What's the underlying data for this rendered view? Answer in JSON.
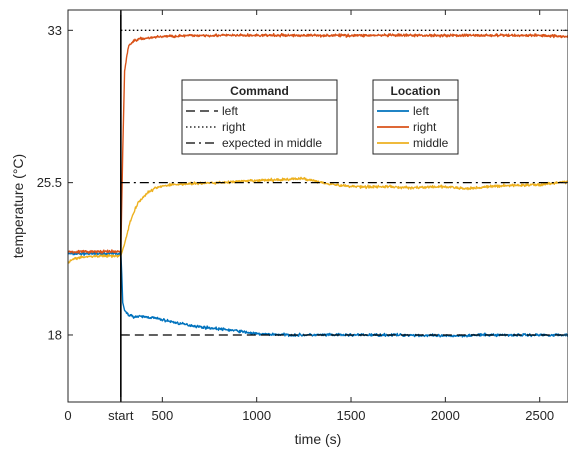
{
  "chart_data": {
    "type": "line",
    "title": "",
    "xlabel": "time (s)",
    "ylabel": "temperature (°C)",
    "xlim": [
      0,
      2650
    ],
    "ylim": [
      14.7,
      34
    ],
    "x_ticks": [
      {
        "value": 0,
        "label": "0"
      },
      {
        "value": 280,
        "label": "start"
      },
      {
        "value": 500,
        "label": "500"
      },
      {
        "value": 1000,
        "label": "1000"
      },
      {
        "value": 1500,
        "label": "1500"
      },
      {
        "value": 2000,
        "label": "2000"
      },
      {
        "value": 2500,
        "label": "2500"
      }
    ],
    "y_ticks": [
      {
        "value": 18,
        "label": "18"
      },
      {
        "value": 25.5,
        "label": "25.5"
      },
      {
        "value": 33,
        "label": "33"
      }
    ],
    "start_marker_x": 280,
    "grid": false,
    "legends": [
      {
        "title": "Command",
        "placement": "top-center",
        "entries": [
          {
            "label": "left",
            "style": "dashed",
            "color": "#000000"
          },
          {
            "label": "right",
            "style": "dotted",
            "color": "#000000"
          },
          {
            "label": "expected in middle",
            "style": "dashdot",
            "color": "#000000"
          }
        ]
      },
      {
        "title": "Location",
        "placement": "top-right",
        "entries": [
          {
            "label": "left",
            "style": "solid",
            "color": "#0072BD"
          },
          {
            "label": "right",
            "style": "solid",
            "color": "#D95319"
          },
          {
            "label": "middle",
            "style": "solid",
            "color": "#EDB120"
          }
        ]
      }
    ],
    "command_series": [
      {
        "name": "left",
        "style": "dashed",
        "color": "#000000",
        "x": [
          280,
          2650
        ],
        "y": [
          18,
          18
        ]
      },
      {
        "name": "right",
        "style": "dotted",
        "color": "#000000",
        "x": [
          280,
          2650
        ],
        "y": [
          33,
          33
        ]
      },
      {
        "name": "expected in middle",
        "style": "dashdot",
        "color": "#000000",
        "x": [
          280,
          2650
        ],
        "y": [
          25.5,
          25.5
        ]
      }
    ],
    "series": [
      {
        "name": "left",
        "color": "#0072BD",
        "x": [
          0,
          100,
          200,
          280,
          285,
          290,
          300,
          320,
          350,
          400,
          450,
          500,
          600,
          700,
          800,
          900,
          1000,
          1200,
          1400,
          1600,
          1800,
          2000,
          2200,
          2400,
          2650
        ],
        "y": [
          22.0,
          22.0,
          22.0,
          22.0,
          21.0,
          19.6,
          19.2,
          19.0,
          18.9,
          18.9,
          18.85,
          18.75,
          18.55,
          18.4,
          18.3,
          18.2,
          18.05,
          18.0,
          18.0,
          18.0,
          18.0,
          17.95,
          18.0,
          18.0,
          18.0
        ]
      },
      {
        "name": "right",
        "color": "#D95319",
        "x": [
          0,
          100,
          200,
          280,
          290,
          300,
          320,
          350,
          400,
          500,
          700,
          1000,
          1500,
          2000,
          2500,
          2650
        ],
        "y": [
          22.1,
          22.1,
          22.1,
          22.1,
          27.0,
          31.0,
          32.2,
          32.5,
          32.6,
          32.7,
          32.75,
          32.75,
          32.75,
          32.75,
          32.75,
          32.7
        ]
      },
      {
        "name": "middle",
        "color": "#EDB120",
        "x": [
          0,
          50,
          100,
          200,
          280,
          300,
          330,
          370,
          420,
          480,
          550,
          650,
          800,
          1000,
          1250,
          1350,
          1450,
          1550,
          1700,
          1800,
          2000,
          2100,
          2300,
          2500,
          2600,
          2650
        ],
        "y": [
          21.6,
          21.8,
          21.85,
          21.9,
          21.9,
          22.5,
          23.6,
          24.5,
          25.0,
          25.3,
          25.4,
          25.45,
          25.5,
          25.6,
          25.7,
          25.5,
          25.35,
          25.3,
          25.3,
          25.25,
          25.3,
          25.2,
          25.35,
          25.4,
          25.5,
          25.55
        ]
      }
    ]
  }
}
